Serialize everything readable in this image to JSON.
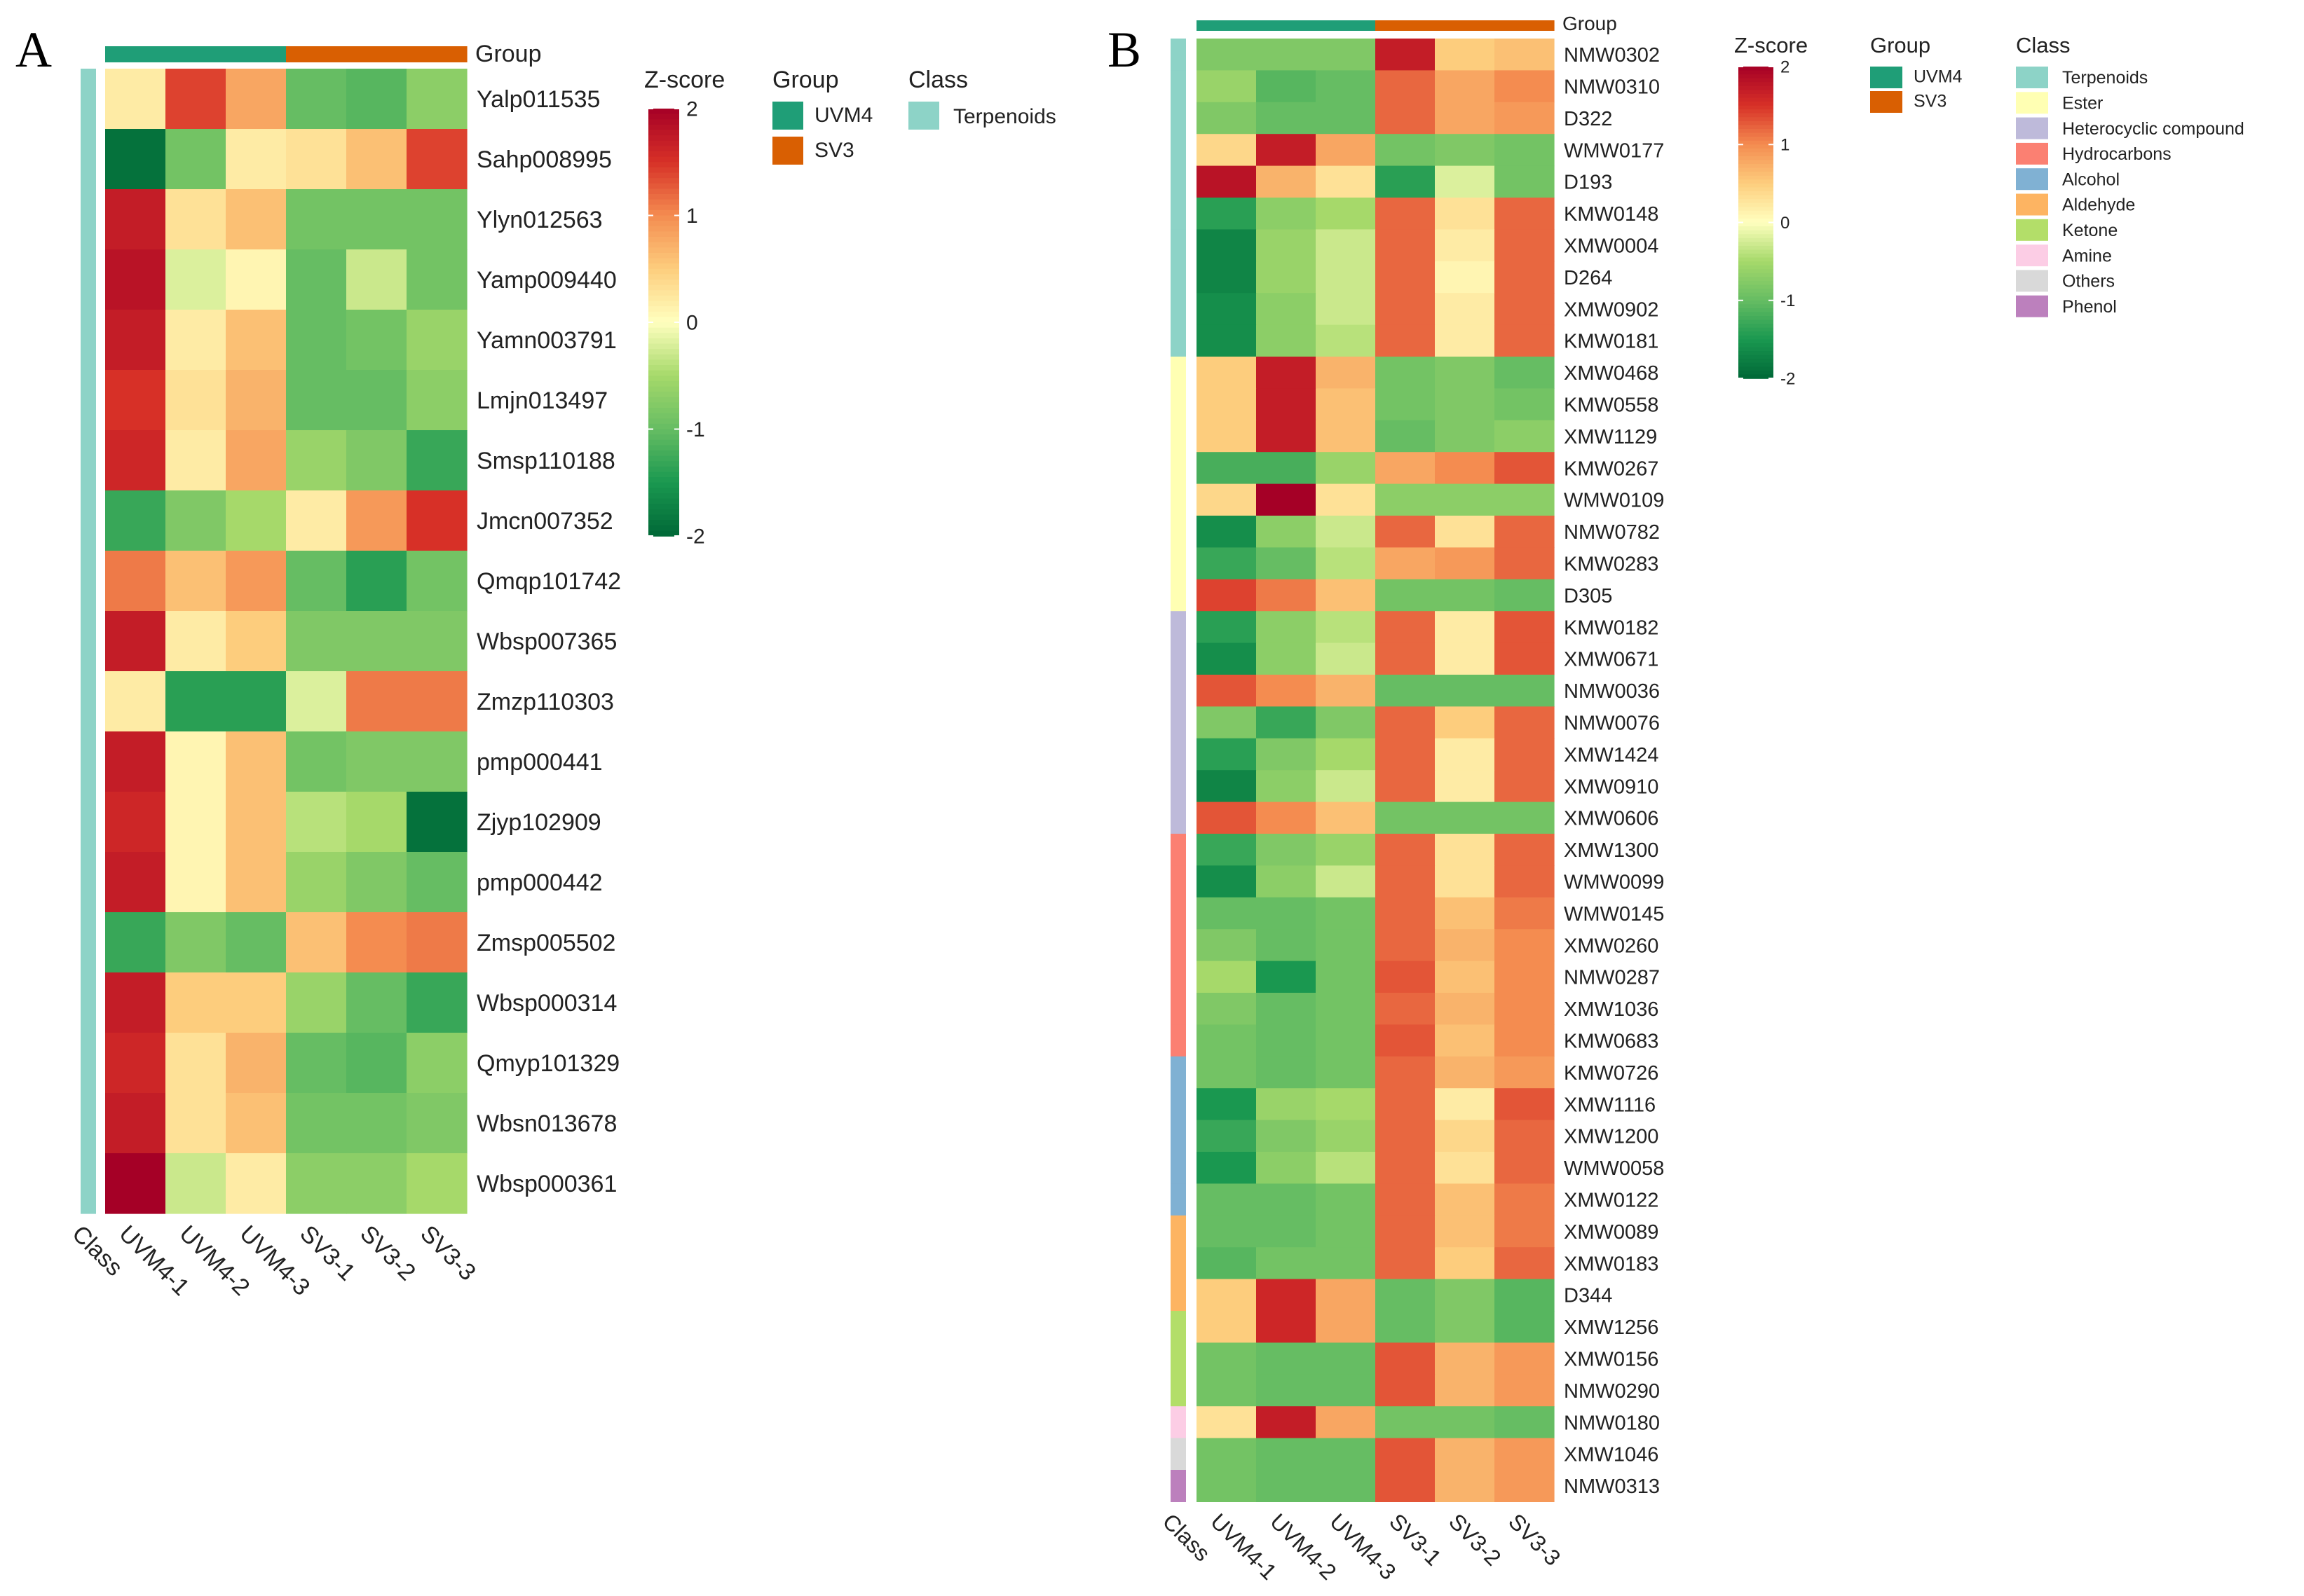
{
  "chart_data": [
    {
      "panel": "A",
      "type": "heatmap",
      "columns": [
        "UVM4-1",
        "UVM4-2",
        "UVM4-3",
        "SV3-1",
        "SV3-2",
        "SV3-3"
      ],
      "class_column_label": "Class",
      "column_groups": [
        "UVM4",
        "UVM4",
        "UVM4",
        "SV3",
        "SV3",
        "SV3"
      ],
      "group_annotation_label": "Group",
      "rows": [
        {
          "name": "Yalp011535",
          "class": "Terpenoids",
          "z": [
            0.2,
            1.4,
            0.8,
            -1.0,
            -1.1,
            -0.7
          ]
        },
        {
          "name": "Sahp008995",
          "class": "Terpenoids",
          "z": [
            -1.9,
            -0.9,
            0.2,
            0.3,
            0.6,
            1.4
          ]
        },
        {
          "name": "Ylyn012563",
          "class": "Terpenoids",
          "z": [
            1.7,
            0.3,
            0.6,
            -0.9,
            -0.9,
            -0.9
          ]
        },
        {
          "name": "Yamp009440",
          "class": "Terpenoids",
          "z": [
            1.8,
            -0.2,
            0.1,
            -1.0,
            -0.3,
            -0.9
          ]
        },
        {
          "name": "Yamn003791",
          "class": "Terpenoids",
          "z": [
            1.7,
            0.2,
            0.6,
            -1.0,
            -0.9,
            -0.6
          ]
        },
        {
          "name": "Lmjn013497",
          "class": "Terpenoids",
          "z": [
            1.5,
            0.3,
            0.7,
            -1.0,
            -1.0,
            -0.7
          ]
        },
        {
          "name": "Smsp110188",
          "class": "Terpenoids",
          "z": [
            1.6,
            0.2,
            0.8,
            -0.6,
            -0.8,
            -1.3
          ]
        },
        {
          "name": "Jmcn007352",
          "class": "Terpenoids",
          "z": [
            -1.3,
            -0.8,
            -0.5,
            0.2,
            0.9,
            1.5
          ]
        },
        {
          "name": "Qmqp101742",
          "class": "Terpenoids",
          "z": [
            1.1,
            0.6,
            0.9,
            -1.0,
            -1.4,
            -0.9
          ]
        },
        {
          "name": "Wbsp007365",
          "class": "Terpenoids",
          "z": [
            1.7,
            0.2,
            0.5,
            -0.8,
            -0.8,
            -0.8
          ]
        },
        {
          "name": "Zmzp110303",
          "class": "Terpenoids",
          "z": [
            0.2,
            -1.4,
            -1.4,
            -0.2,
            1.1,
            1.1
          ]
        },
        {
          "name": "pmp000441",
          "class": "Terpenoids",
          "z": [
            1.7,
            0.1,
            0.6,
            -0.9,
            -0.8,
            -0.8
          ]
        },
        {
          "name": "Zjyp102909",
          "class": "Terpenoids",
          "z": [
            1.6,
            0.1,
            0.6,
            -0.4,
            -0.5,
            -1.9
          ]
        },
        {
          "name": "pmp000442",
          "class": "Terpenoids",
          "z": [
            1.7,
            0.1,
            0.6,
            -0.6,
            -0.8,
            -1.0
          ]
        },
        {
          "name": "Zmsp005502",
          "class": "Terpenoids",
          "z": [
            -1.3,
            -0.8,
            -1.0,
            0.6,
            1.0,
            1.1
          ]
        },
        {
          "name": "Wbsp000314",
          "class": "Terpenoids",
          "z": [
            1.7,
            0.5,
            0.5,
            -0.6,
            -1.0,
            -1.3
          ]
        },
        {
          "name": "Qmyp101329",
          "class": "Terpenoids",
          "z": [
            1.6,
            0.3,
            0.7,
            -1.0,
            -1.1,
            -0.7
          ]
        },
        {
          "name": "Wbsn013678",
          "class": "Terpenoids",
          "z": [
            1.7,
            0.3,
            0.6,
            -0.9,
            -0.9,
            -0.8
          ]
        },
        {
          "name": "Wbsp000361",
          "class": "Terpenoids",
          "z": [
            2.0,
            -0.3,
            0.2,
            -0.7,
            -0.7,
            -0.5
          ]
        }
      ],
      "color_scale": {
        "label": "Z-score",
        "ticks": [
          2,
          1,
          0,
          -1,
          -2
        ],
        "range": [
          -2,
          2
        ]
      },
      "group_legend": {
        "title": "Group",
        "items": [
          {
            "label": "UVM4",
            "color": "#1f9e77"
          },
          {
            "label": "SV3",
            "color": "#d95f02"
          }
        ]
      },
      "class_legend": {
        "title": "Class",
        "items": [
          {
            "label": "Terpenoids",
            "color": "#8dd3c7"
          }
        ]
      }
    },
    {
      "panel": "B",
      "type": "heatmap",
      "columns": [
        "UVM4-1",
        "UVM4-2",
        "UVM4-3",
        "SV3-1",
        "SV3-2",
        "SV3-3"
      ],
      "class_column_label": "Class",
      "column_groups": [
        "UVM4",
        "UVM4",
        "UVM4",
        "SV3",
        "SV3",
        "SV3"
      ],
      "group_annotation_label": "Group",
      "rows": [
        {
          "name": "NMW0302",
          "class": "Terpenoids",
          "z": [
            -0.8,
            -0.8,
            -0.8,
            1.7,
            0.5,
            0.6
          ]
        },
        {
          "name": "NMW0310",
          "class": "Terpenoids",
          "z": [
            -0.6,
            -1.1,
            -1.0,
            1.2,
            0.8,
            1.0
          ]
        },
        {
          "name": "D322",
          "class": "Terpenoids",
          "z": [
            -0.8,
            -1.0,
            -1.0,
            1.2,
            0.8,
            0.9
          ]
        },
        {
          "name": "WMW0177",
          "class": "Terpenoids",
          "z": [
            0.4,
            1.7,
            0.8,
            -0.9,
            -0.8,
            -0.9
          ]
        },
        {
          "name": "D193",
          "class": "Terpenoids",
          "z": [
            1.8,
            0.7,
            0.3,
            -1.4,
            -0.2,
            -0.9
          ]
        },
        {
          "name": "KMW0148",
          "class": "Terpenoids",
          "z": [
            -1.4,
            -0.7,
            -0.5,
            1.2,
            0.3,
            1.2
          ]
        },
        {
          "name": "XMW0004",
          "class": "Terpenoids",
          "z": [
            -1.7,
            -0.6,
            -0.3,
            1.2,
            0.2,
            1.2
          ]
        },
        {
          "name": "D264",
          "class": "Terpenoids",
          "z": [
            -1.7,
            -0.6,
            -0.3,
            1.2,
            0.1,
            1.2
          ]
        },
        {
          "name": "XMW0902",
          "class": "Terpenoids",
          "z": [
            -1.6,
            -0.7,
            -0.3,
            1.2,
            0.2,
            1.2
          ]
        },
        {
          "name": "KMW0181",
          "class": "Terpenoids",
          "z": [
            -1.6,
            -0.7,
            -0.4,
            1.2,
            0.2,
            1.2
          ]
        },
        {
          "name": "XMW0468",
          "class": "Ester",
          "z": [
            0.5,
            1.7,
            0.7,
            -0.9,
            -0.8,
            -1.0
          ]
        },
        {
          "name": "KMW0558",
          "class": "Ester",
          "z": [
            0.5,
            1.7,
            0.6,
            -0.9,
            -0.8,
            -0.9
          ]
        },
        {
          "name": "XMW1129",
          "class": "Ester",
          "z": [
            0.5,
            1.7,
            0.6,
            -1.0,
            -0.8,
            -0.7
          ]
        },
        {
          "name": "KMW0267",
          "class": "Ester",
          "z": [
            -1.2,
            -1.2,
            -0.6,
            0.8,
            1.0,
            1.3
          ]
        },
        {
          "name": "WMW0109",
          "class": "Ester",
          "z": [
            0.4,
            2.0,
            0.3,
            -0.7,
            -0.7,
            -0.7
          ]
        },
        {
          "name": "NMW0782",
          "class": "Ester",
          "z": [
            -1.6,
            -0.7,
            -0.3,
            1.2,
            0.3,
            1.2
          ]
        },
        {
          "name": "KMW0283",
          "class": "Ester",
          "z": [
            -1.3,
            -1.0,
            -0.4,
            0.8,
            0.9,
            1.2
          ]
        },
        {
          "name": "D305",
          "class": "Ester",
          "z": [
            1.4,
            1.1,
            0.6,
            -0.9,
            -0.9,
            -1.0
          ]
        },
        {
          "name": "KMW0182",
          "class": "Heterocyclic compound",
          "z": [
            -1.4,
            -0.7,
            -0.4,
            1.2,
            0.2,
            1.3
          ]
        },
        {
          "name": "XMW0671",
          "class": "Heterocyclic compound",
          "z": [
            -1.6,
            -0.7,
            -0.3,
            1.2,
            0.2,
            1.3
          ]
        },
        {
          "name": "NMW0036",
          "class": "Heterocyclic compound",
          "z": [
            1.3,
            1.0,
            0.7,
            -1.0,
            -1.0,
            -1.0
          ]
        },
        {
          "name": "NMW0076",
          "class": "Heterocyclic compound",
          "z": [
            -0.8,
            -1.3,
            -0.8,
            1.2,
            0.5,
            1.2
          ]
        },
        {
          "name": "XMW1424",
          "class": "Heterocyclic compound",
          "z": [
            -1.4,
            -0.8,
            -0.5,
            1.2,
            0.2,
            1.2
          ]
        },
        {
          "name": "XMW0910",
          "class": "Heterocyclic compound",
          "z": [
            -1.7,
            -0.7,
            -0.3,
            1.2,
            0.2,
            1.2
          ]
        },
        {
          "name": "XMW0606",
          "class": "Heterocyclic compound",
          "z": [
            1.3,
            1.0,
            0.6,
            -0.9,
            -0.9,
            -0.9
          ]
        },
        {
          "name": "XMW1300",
          "class": "Hydrocarbons",
          "z": [
            -1.3,
            -0.8,
            -0.6,
            1.2,
            0.3,
            1.2
          ]
        },
        {
          "name": "WMW0099",
          "class": "Hydrocarbons",
          "z": [
            -1.6,
            -0.7,
            -0.3,
            1.2,
            0.3,
            1.2
          ]
        },
        {
          "name": "WMW0145",
          "class": "Hydrocarbons",
          "z": [
            -1.0,
            -1.0,
            -0.9,
            1.2,
            0.6,
            1.1
          ]
        },
        {
          "name": "XMW0260",
          "class": "Hydrocarbons",
          "z": [
            -0.8,
            -1.0,
            -0.9,
            1.2,
            0.7,
            1.0
          ]
        },
        {
          "name": "NMW0287",
          "class": "Hydrocarbons",
          "z": [
            -0.5,
            -1.5,
            -0.9,
            1.3,
            0.6,
            1.0
          ]
        },
        {
          "name": "XMW1036",
          "class": "Hydrocarbons",
          "z": [
            -0.8,
            -1.0,
            -0.9,
            1.2,
            0.7,
            1.0
          ]
        },
        {
          "name": "KMW0683",
          "class": "Hydrocarbons",
          "z": [
            -0.9,
            -1.0,
            -0.9,
            1.3,
            0.6,
            1.0
          ]
        },
        {
          "name": "KMW0726",
          "class": "Alcohol",
          "z": [
            -0.9,
            -1.0,
            -0.9,
            1.2,
            0.7,
            0.9
          ]
        },
        {
          "name": "XMW1116",
          "class": "Alcohol",
          "z": [
            -1.5,
            -0.6,
            -0.5,
            1.2,
            0.2,
            1.3
          ]
        },
        {
          "name": "XMW1200",
          "class": "Alcohol",
          "z": [
            -1.3,
            -0.8,
            -0.6,
            1.2,
            0.4,
            1.2
          ]
        },
        {
          "name": "WMW0058",
          "class": "Alcohol",
          "z": [
            -1.5,
            -0.7,
            -0.4,
            1.2,
            0.3,
            1.2
          ]
        },
        {
          "name": "XMW0122",
          "class": "Alcohol",
          "z": [
            -1.0,
            -1.0,
            -0.9,
            1.2,
            0.6,
            1.1
          ]
        },
        {
          "name": "XMW0089",
          "class": "Aldehyde",
          "z": [
            -1.0,
            -1.0,
            -0.9,
            1.2,
            0.6,
            1.1
          ]
        },
        {
          "name": "XMW0183",
          "class": "Aldehyde",
          "z": [
            -1.1,
            -0.9,
            -0.9,
            1.2,
            0.5,
            1.2
          ]
        },
        {
          "name": "D344",
          "class": "Aldehyde",
          "z": [
            0.5,
            1.6,
            0.8,
            -1.0,
            -0.8,
            -1.1
          ]
        },
        {
          "name": "XMW1256",
          "class": "Ketone",
          "z": [
            0.5,
            1.6,
            0.8,
            -1.0,
            -0.8,
            -1.1
          ]
        },
        {
          "name": "XMW0156",
          "class": "Ketone",
          "z": [
            -0.9,
            -1.0,
            -1.0,
            1.3,
            0.7,
            0.9
          ]
        },
        {
          "name": "NMW0290",
          "class": "Ketone",
          "z": [
            -0.9,
            -1.0,
            -1.0,
            1.3,
            0.7,
            0.9
          ]
        },
        {
          "name": "NMW0180",
          "class": "Amine",
          "z": [
            0.3,
            1.7,
            0.8,
            -0.9,
            -0.9,
            -1.0
          ]
        },
        {
          "name": "XMW1046",
          "class": "Others",
          "z": [
            -0.9,
            -1.0,
            -1.0,
            1.3,
            0.7,
            0.9
          ]
        },
        {
          "name": "NMW0313",
          "class": "Phenol",
          "z": [
            -0.9,
            -1.0,
            -1.0,
            1.3,
            0.7,
            0.9
          ]
        }
      ],
      "color_scale": {
        "label": "Z-score",
        "ticks": [
          2,
          1,
          0,
          -1,
          -2
        ],
        "range": [
          -2,
          2
        ]
      },
      "group_legend": {
        "title": "Group",
        "items": [
          {
            "label": "UVM4",
            "color": "#1f9e77"
          },
          {
            "label": "SV3",
            "color": "#d95f02"
          }
        ]
      },
      "class_legend": {
        "title": "Class",
        "items": [
          {
            "label": "Terpenoids",
            "color": "#8dd3c7"
          },
          {
            "label": "Ester",
            "color": "#ffffb3"
          },
          {
            "label": "Heterocyclic compound",
            "color": "#bebada"
          },
          {
            "label": "Hydrocarbons",
            "color": "#fb8072"
          },
          {
            "label": "Alcohol",
            "color": "#80b1d3"
          },
          {
            "label": "Aldehyde",
            "color": "#fdb462"
          },
          {
            "label": "Ketone",
            "color": "#b3de69"
          },
          {
            "label": "Amine",
            "color": "#fccde5"
          },
          {
            "label": "Others",
            "color": "#d9d9d9"
          },
          {
            "label": "Phenol",
            "color": "#bc80bd"
          }
        ]
      }
    }
  ]
}
